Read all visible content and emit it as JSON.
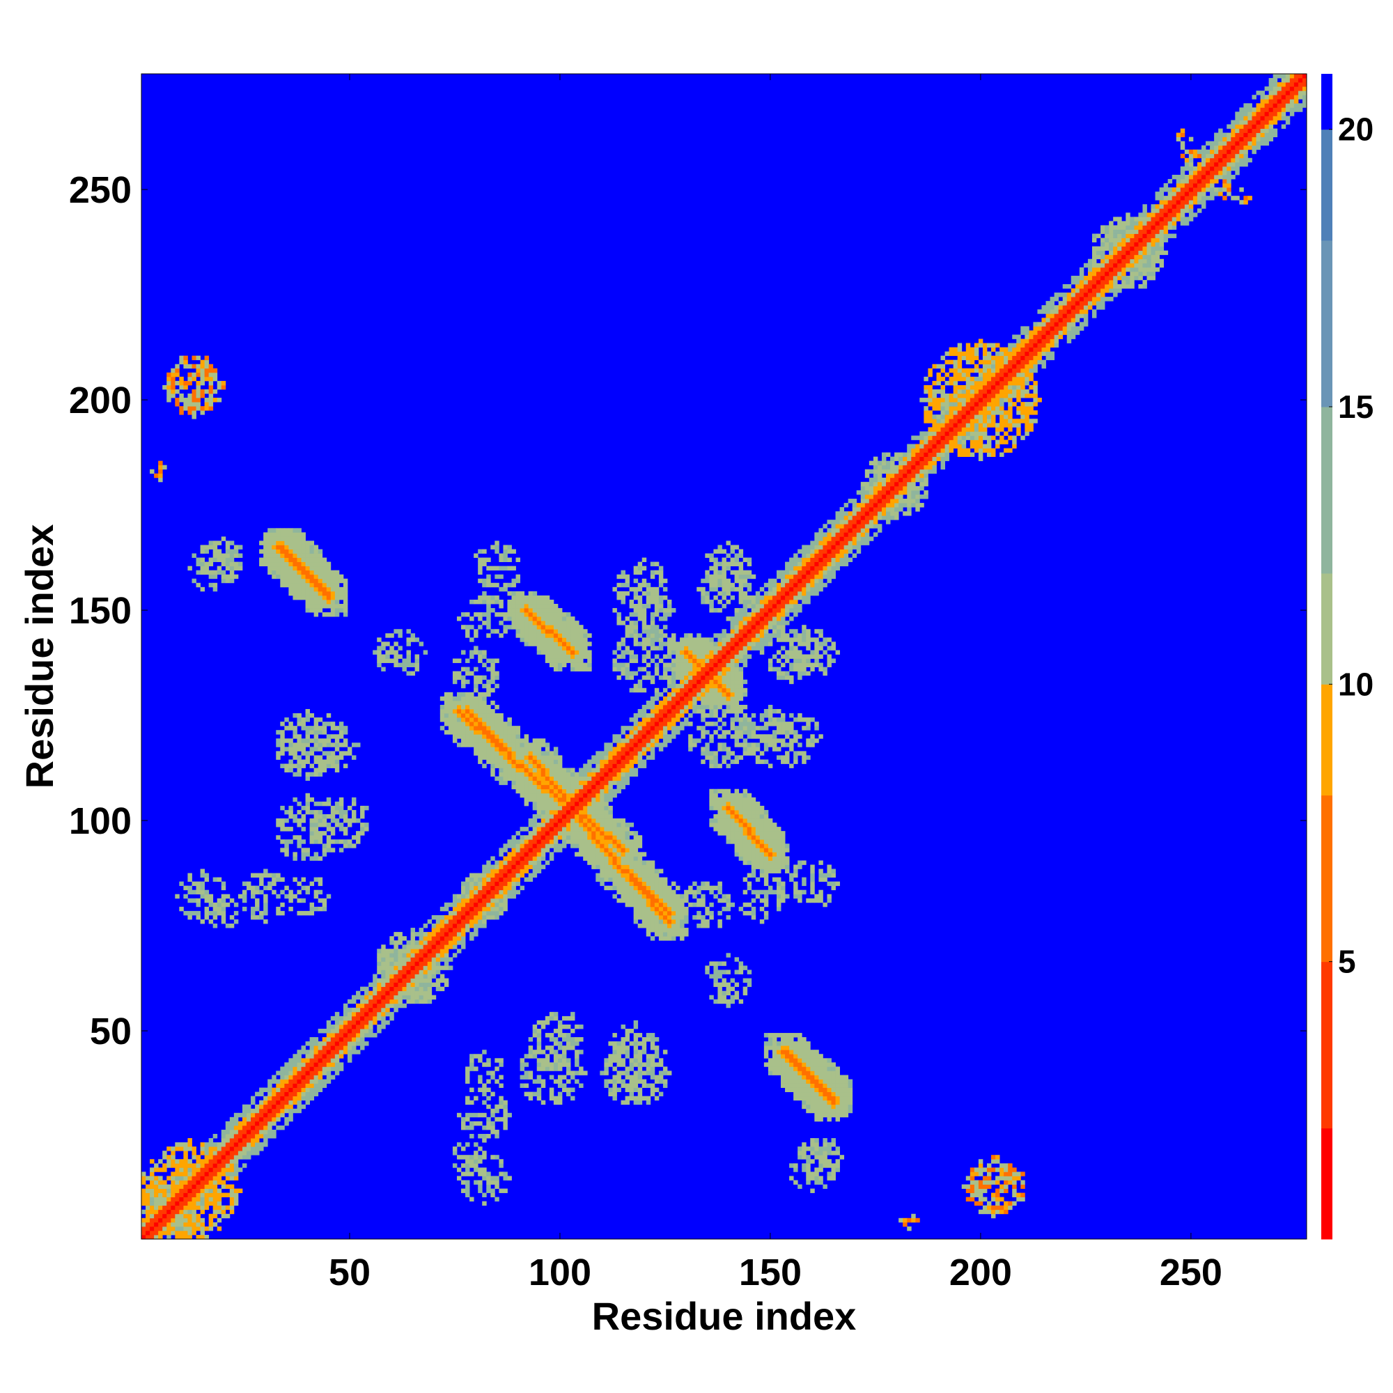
{
  "chart_data": {
    "type": "heatmap",
    "title": "",
    "xlabel": "Residue index",
    "ylabel": "Residue index",
    "n_residues": 277,
    "xlim": [
      1,
      277
    ],
    "ylim": [
      1,
      277
    ],
    "x_ticks": [
      50,
      100,
      150,
      200,
      250
    ],
    "y_ticks": [
      50,
      100,
      150,
      200,
      250
    ],
    "colorbar": {
      "ticks": [
        5,
        10,
        15,
        20
      ],
      "range": [
        0,
        21
      ],
      "colors": [
        "#ff0000",
        "#ff3a00",
        "#ff7000",
        "#ffa500",
        "#a9c08a",
        "#8fb59d",
        "#6a95b6",
        "#4f80b8",
        "#0000ff"
      ],
      "boundaries": [
        0,
        2,
        5,
        8,
        10,
        12,
        15,
        18,
        20,
        21
      ]
    },
    "background_color": "#0000ff",
    "diagonal": {
      "from": 1,
      "to": 277,
      "core_value": 1,
      "near_value": 3.5,
      "shell_value": 11
    },
    "features": [
      {
        "kind": "antidiagonal",
        "x": [
          33,
          45
        ],
        "y": [
          165,
          153
        ],
        "value": 6.5
      },
      {
        "kind": "antidiagonal",
        "x": [
          92,
          103
        ],
        "y": [
          150,
          140
        ],
        "value": 6.5
      },
      {
        "kind": "antidiagonal",
        "x": [
          78,
          88
        ],
        "y": [
          126,
          116
        ],
        "value": 6.5
      },
      {
        "kind": "antidiagonal",
        "x": [
          93,
          103
        ],
        "y": [
          115,
          103
        ],
        "value": 6.5
      },
      {
        "kind": "antidiagonal",
        "x": [
          105,
          115
        ],
        "y": [
          100,
          88
        ],
        "value": 6.5
      },
      {
        "kind": "antidiagonal",
        "x": [
          117,
          126
        ],
        "y": [
          86,
          76
        ],
        "value": 6.5
      },
      {
        "kind": "antidiagonal",
        "x": [
          140,
          150
        ],
        "y": [
          103,
          92
        ],
        "value": 6.5
      },
      {
        "kind": "antidiagonal",
        "x": [
          154,
          165
        ],
        "y": [
          45,
          34
        ],
        "value": 6.5
      },
      {
        "kind": "antidiagonal",
        "x": [
          130,
          138
        ],
        "y": [
          140,
          132
        ],
        "value": 6.5
      },
      {
        "kind": "blob",
        "x": 13,
        "y": 203,
        "r": 7,
        "value": 6
      },
      {
        "kind": "blob",
        "x": 204,
        "y": 13,
        "r": 7,
        "value": 6
      },
      {
        "kind": "blob",
        "x": 5,
        "y": 183,
        "r": 2,
        "value": 6.5
      },
      {
        "kind": "blob",
        "x": 183,
        "y": 5,
        "r": 2,
        "value": 6.5
      },
      {
        "kind": "blob",
        "x": 248,
        "y": 262,
        "r": 2,
        "value": 7
      },
      {
        "kind": "blob",
        "x": 258,
        "y": 250,
        "r": 2,
        "value": 7
      },
      {
        "kind": "blob",
        "x": 200,
        "y": 200,
        "r": 14,
        "value": 9
      },
      {
        "kind": "blob",
        "x": 12,
        "y": 12,
        "r": 12,
        "value": 9
      },
      {
        "kind": "blob",
        "x": 40,
        "y": 98,
        "r": 8,
        "value": 11
      },
      {
        "kind": "blob",
        "x": 40,
        "y": 118,
        "r": 8,
        "value": 11
      },
      {
        "kind": "blob",
        "x": 30,
        "y": 82,
        "r": 6,
        "value": 11
      },
      {
        "kind": "blob",
        "x": 15,
        "y": 82,
        "r": 6,
        "value": 11
      },
      {
        "kind": "blob",
        "x": 20,
        "y": 162,
        "r": 5,
        "value": 11
      },
      {
        "kind": "blob",
        "x": 100,
        "y": 48,
        "r": 7,
        "value": 11
      },
      {
        "kind": "blob",
        "x": 118,
        "y": 45,
        "r": 7,
        "value": 11
      },
      {
        "kind": "blob",
        "x": 82,
        "y": 40,
        "r": 5,
        "value": 11
      },
      {
        "kind": "blob",
        "x": 138,
        "y": 120,
        "r": 8,
        "value": 11
      },
      {
        "kind": "blob",
        "x": 155,
        "y": 120,
        "r": 7,
        "value": 11
      },
      {
        "kind": "blob",
        "x": 155,
        "y": 140,
        "r": 7,
        "value": 11
      },
      {
        "kind": "blob",
        "x": 120,
        "y": 150,
        "r": 7,
        "value": 11
      },
      {
        "kind": "blob",
        "x": 140,
        "y": 160,
        "r": 6,
        "value": 11
      },
      {
        "kind": "blob",
        "x": 62,
        "y": 140,
        "r": 6,
        "value": 11
      },
      {
        "kind": "blob",
        "x": 82,
        "y": 148,
        "r": 6,
        "value": 11
      },
      {
        "kind": "blob",
        "x": 160,
        "y": 85,
        "r": 6,
        "value": 11
      },
      {
        "kind": "blob",
        "x": 135,
        "y": 80,
        "r": 6,
        "value": 11
      },
      {
        "kind": "blob",
        "x": 82,
        "y": 82,
        "r": 6,
        "value": 11
      },
      {
        "kind": "blob",
        "x": 160,
        "y": 18,
        "r": 6,
        "value": 11
      },
      {
        "kind": "blob",
        "x": 78,
        "y": 20,
        "r": 4,
        "value": 11
      },
      {
        "kind": "blob",
        "x": 235,
        "y": 235,
        "r": 9,
        "value": 11
      },
      {
        "kind": "blob",
        "x": 180,
        "y": 180,
        "r": 8,
        "value": 11
      },
      {
        "kind": "blob",
        "x": 65,
        "y": 65,
        "r": 9,
        "value": 10
      }
    ]
  }
}
